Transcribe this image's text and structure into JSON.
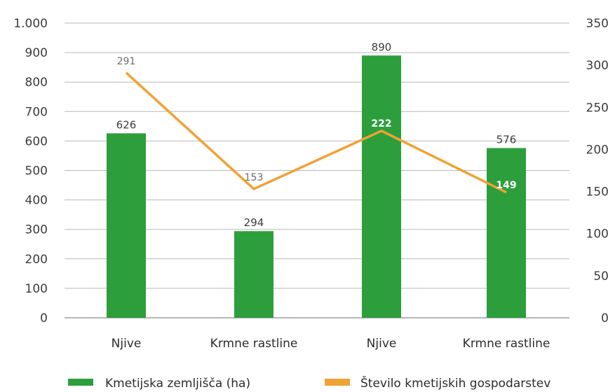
{
  "chart_data": {
    "type": "bar",
    "categories": [
      "Njive",
      "Krmne rastline",
      "Njive",
      "Krmne rastline"
    ],
    "series": [
      {
        "name": "Kmetijska zemljišča (ha)",
        "type": "bar",
        "axis": "left",
        "color": "#2d9e3c",
        "values": [
          626,
          294,
          890,
          576
        ],
        "value_labels": [
          "626",
          "294",
          "890",
          "576"
        ]
      },
      {
        "name": "Število kmetijskih gospodarstev",
        "type": "line",
        "axis": "right",
        "color": "#f0a234",
        "values": [
          291,
          153,
          222,
          149
        ],
        "value_labels": [
          "291",
          "153",
          "222",
          "149"
        ]
      }
    ],
    "y_left": {
      "lim": [
        0,
        1000
      ],
      "ticks": [
        0,
        100,
        200,
        300,
        400,
        500,
        600,
        700,
        800,
        900,
        1000
      ],
      "tick_labels": [
        "0",
        "100",
        "200",
        "300",
        "400",
        "500",
        "600",
        "700",
        "800",
        "900",
        "1.000"
      ]
    },
    "y_right": {
      "lim": [
        0,
        350
      ],
      "ticks": [
        0,
        50,
        100,
        150,
        200,
        250,
        300,
        350
      ],
      "tick_labels": [
        "0",
        "50",
        "100",
        "150",
        "200",
        "250",
        "300",
        "350"
      ]
    },
    "grid": true,
    "legend": "bottom"
  }
}
